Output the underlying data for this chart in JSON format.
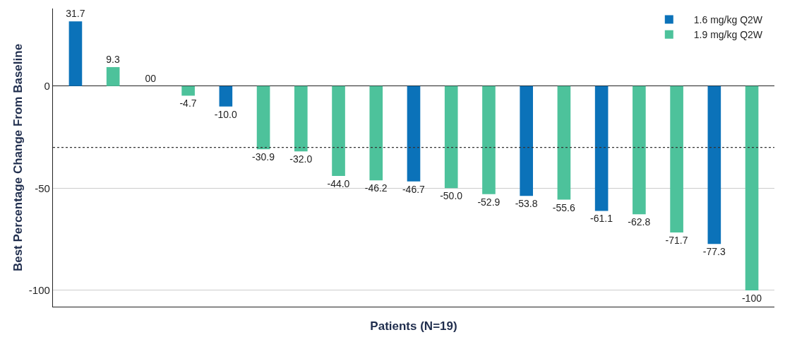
{
  "chart_data": {
    "type": "bar",
    "xlabel": "Patients (N=19)",
    "ylabel": "Best Percentage Change From Baseline",
    "categories": [
      null,
      null,
      null,
      null,
      null,
      null,
      null,
      null,
      null,
      null,
      null,
      null,
      null,
      null,
      null,
      null,
      null,
      null,
      null
    ],
    "series": [
      {
        "name": "1.6 mg/kg Q2W",
        "color": "#0b72b9",
        "values": [
          31.7,
          null,
          null,
          null,
          -10.0,
          null,
          null,
          null,
          null,
          -46.7,
          null,
          null,
          -53.8,
          null,
          -61.1,
          null,
          null,
          -77.3,
          null
        ],
        "value_labels": [
          "31.7",
          null,
          null,
          null,
          "-10.0",
          null,
          null,
          null,
          null,
          "-46.7",
          null,
          null,
          "-53.8",
          null,
          "-61.1",
          null,
          null,
          "-77.3",
          null
        ]
      },
      {
        "name": "1.9 mg/kg Q2W",
        "color": "#4dc29b",
        "values": [
          null,
          9.3,
          0,
          -4.7,
          null,
          -30.9,
          -32.0,
          -44.0,
          -46.2,
          null,
          -50.0,
          -52.9,
          null,
          -55.6,
          null,
          -62.8,
          -71.7,
          null,
          -100
        ],
        "value_labels": [
          null,
          "9.3",
          "00",
          "-4.7",
          null,
          "-30.9",
          "-32.0",
          "-44.0",
          "-46.2",
          null,
          "-50.0",
          "-52.9",
          null,
          "-55.6",
          null,
          "-62.8",
          "-71.7",
          null,
          "-100"
        ]
      }
    ],
    "ylim": [
      -108,
      38
    ],
    "yticks": [
      0,
      -50,
      -100
    ],
    "grid": "y",
    "legend": "top right",
    "ref_lines": [
      {
        "axis": "y",
        "value": -30,
        "color": "#333333",
        "line_style": "dotted"
      }
    ]
  }
}
